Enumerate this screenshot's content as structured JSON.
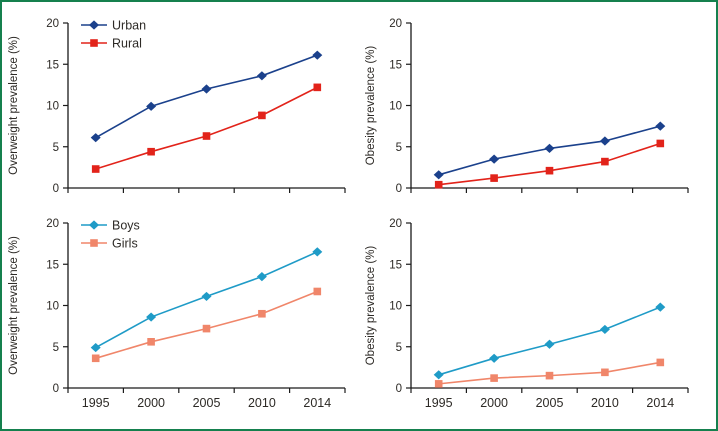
{
  "figure": {
    "border_color": "#15804e",
    "background": "#ffffff",
    "text_color": "#2d2a26",
    "axis_color": "#1a1a1a"
  },
  "chart_data": [
    {
      "type": "line",
      "position": "top-left",
      "ylabel": "Overweight prevalence (%)",
      "xlabel": "",
      "x": [
        1995,
        2000,
        2005,
        2010,
        2014
      ],
      "x_tick_labels": [
        "1995",
        "2000",
        "2005",
        "2010",
        "2014"
      ],
      "show_x_tick_labels": false,
      "ylim": [
        0,
        20
      ],
      "yticks": [
        0,
        5,
        10,
        15,
        20
      ],
      "grid": false,
      "show_legend": true,
      "legend_position": "top-left-inside",
      "series": [
        {
          "name": "Urban",
          "marker": "diamond",
          "color": "#1b418c",
          "values": [
            6.1,
            9.9,
            12.0,
            13.6,
            16.1
          ]
        },
        {
          "name": "Rural",
          "marker": "square",
          "color": "#e2231a",
          "values": [
            2.3,
            4.4,
            6.3,
            8.8,
            12.2
          ]
        }
      ]
    },
    {
      "type": "line",
      "position": "top-right",
      "ylabel": "Obesity prevalence (%)",
      "xlabel": "",
      "x": [
        1995,
        2000,
        2005,
        2010,
        2014
      ],
      "x_tick_labels": [
        "1995",
        "2000",
        "2005",
        "2010",
        "2014"
      ],
      "show_x_tick_labels": false,
      "ylim": [
        0,
        20
      ],
      "yticks": [
        0,
        5,
        10,
        15,
        20
      ],
      "grid": false,
      "show_legend": false,
      "legend_position": "none",
      "series": [
        {
          "name": "Urban",
          "marker": "diamond",
          "color": "#1b418c",
          "values": [
            1.6,
            3.5,
            4.8,
            5.7,
            7.5
          ]
        },
        {
          "name": "Rural",
          "marker": "square",
          "color": "#e2231a",
          "values": [
            0.4,
            1.2,
            2.1,
            3.2,
            5.4
          ]
        }
      ]
    },
    {
      "type": "line",
      "position": "bottom-left",
      "ylabel": "Overweight prevalence (%)",
      "xlabel": "",
      "x": [
        1995,
        2000,
        2005,
        2010,
        2014
      ],
      "x_tick_labels": [
        "1995",
        "2000",
        "2005",
        "2010",
        "2014"
      ],
      "show_x_tick_labels": true,
      "ylim": [
        0,
        20
      ],
      "yticks": [
        0,
        5,
        10,
        15,
        20
      ],
      "grid": false,
      "show_legend": true,
      "legend_position": "top-left-inside",
      "series": [
        {
          "name": "Boys",
          "marker": "diamond",
          "color": "#1f9bc7",
          "values": [
            4.9,
            8.6,
            11.1,
            13.5,
            16.5
          ]
        },
        {
          "name": "Girls",
          "marker": "square",
          "color": "#f0866a",
          "values": [
            3.6,
            5.6,
            7.2,
            9.0,
            11.7
          ]
        }
      ]
    },
    {
      "type": "line",
      "position": "bottom-right",
      "ylabel": "Obesity prevalence (%)",
      "xlabel": "",
      "x": [
        1995,
        2000,
        2005,
        2010,
        2014
      ],
      "x_tick_labels": [
        "1995",
        "2000",
        "2005",
        "2010",
        "2014"
      ],
      "show_x_tick_labels": true,
      "ylim": [
        0,
        20
      ],
      "yticks": [
        0,
        5,
        10,
        15,
        20
      ],
      "grid": false,
      "show_legend": false,
      "legend_position": "none",
      "series": [
        {
          "name": "Boys",
          "marker": "diamond",
          "color": "#1f9bc7",
          "values": [
            1.6,
            3.6,
            5.3,
            7.1,
            9.8
          ]
        },
        {
          "name": "Girls",
          "marker": "square",
          "color": "#f0866a",
          "values": [
            0.5,
            1.2,
            1.5,
            1.9,
            3.1
          ]
        }
      ]
    }
  ]
}
